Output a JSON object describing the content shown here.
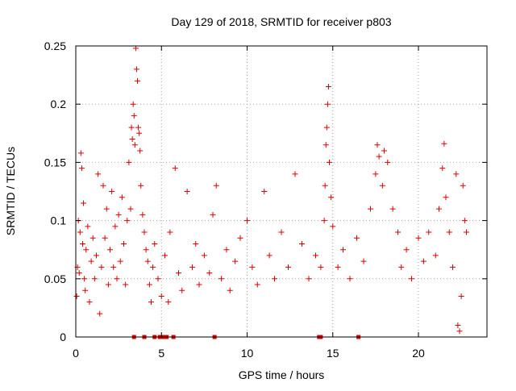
{
  "chart_data": {
    "type": "scatter",
    "title": "Day 129 of 2018, SRMTID for receiver p803",
    "xlabel": "GPS time / hours",
    "ylabel": "SRMTID / TECUs",
    "xlim": [
      0,
      24
    ],
    "ylim": [
      0,
      0.25
    ],
    "grid": true,
    "marker": "plus",
    "marker_color": "#dd0000",
    "x_ticks": [
      0,
      5,
      10,
      15,
      20
    ],
    "x_tick_labels": [
      "0",
      "5",
      "10",
      "15",
      "20"
    ],
    "y_ticks": [
      0,
      0.05,
      0.1,
      0.15,
      0.2,
      0.25
    ],
    "y_tick_labels": [
      "0",
      "0.05",
      "0.1",
      "0.15",
      "0.2",
      "0.25"
    ],
    "zero_markers_x": [
      3.4,
      4.0,
      4.6,
      4.9,
      5.1,
      5.3,
      5.7,
      8.1,
      14.2,
      14.3,
      16.5
    ],
    "points": [
      [
        0.05,
        0.035
      ],
      [
        0.1,
        0.06
      ],
      [
        0.15,
        0.1
      ],
      [
        0.2,
        0.055
      ],
      [
        0.25,
        0.09
      ],
      [
        0.3,
        0.158
      ],
      [
        0.35,
        0.145
      ],
      [
        0.4,
        0.08
      ],
      [
        0.45,
        0.115
      ],
      [
        0.5,
        0.05
      ],
      [
        0.55,
        0.04
      ],
      [
        0.6,
        0.075
      ],
      [
        0.7,
        0.095
      ],
      [
        0.8,
        0.03
      ],
      [
        0.9,
        0.065
      ],
      [
        1.0,
        0.085
      ],
      [
        1.1,
        0.05
      ],
      [
        1.2,
        0.07
      ],
      [
        1.3,
        0.14
      ],
      [
        1.4,
        0.02
      ],
      [
        1.5,
        0.06
      ],
      [
        1.6,
        0.13
      ],
      [
        1.7,
        0.085
      ],
      [
        1.8,
        0.11
      ],
      [
        1.9,
        0.045
      ],
      [
        2.0,
        0.075
      ],
      [
        2.1,
        0.125
      ],
      [
        2.2,
        0.06
      ],
      [
        2.3,
        0.095
      ],
      [
        2.4,
        0.05
      ],
      [
        2.5,
        0.105
      ],
      [
        2.6,
        0.065
      ],
      [
        2.7,
        0.12
      ],
      [
        2.8,
        0.08
      ],
      [
        2.9,
        0.045
      ],
      [
        3.0,
        0.1
      ],
      [
        3.1,
        0.15
      ],
      [
        3.2,
        0.11
      ],
      [
        3.25,
        0.18
      ],
      [
        3.3,
        0.17
      ],
      [
        3.35,
        0.2
      ],
      [
        3.4,
        0.19
      ],
      [
        3.45,
        0.165
      ],
      [
        3.5,
        0.248
      ],
      [
        3.55,
        0.23
      ],
      [
        3.6,
        0.22
      ],
      [
        3.65,
        0.18
      ],
      [
        3.7,
        0.175
      ],
      [
        3.75,
        0.16
      ],
      [
        3.8,
        0.13
      ],
      [
        3.9,
        0.105
      ],
      [
        4.0,
        0.09
      ],
      [
        4.1,
        0.075
      ],
      [
        4.2,
        0.065
      ],
      [
        4.3,
        0.045
      ],
      [
        4.4,
        0.03
      ],
      [
        4.5,
        0.06
      ],
      [
        4.6,
        0.08
      ],
      [
        4.8,
        0.05
      ],
      [
        5.0,
        0.035
      ],
      [
        5.2,
        0.07
      ],
      [
        5.4,
        0.03
      ],
      [
        5.5,
        0.09
      ],
      [
        5.8,
        0.145
      ],
      [
        6.0,
        0.055
      ],
      [
        6.2,
        0.04
      ],
      [
        6.5,
        0.125
      ],
      [
        6.8,
        0.06
      ],
      [
        7.0,
        0.08
      ],
      [
        7.2,
        0.045
      ],
      [
        7.5,
        0.07
      ],
      [
        7.8,
        0.055
      ],
      [
        8.0,
        0.105
      ],
      [
        8.2,
        0.13
      ],
      [
        8.5,
        0.05
      ],
      [
        8.8,
        0.075
      ],
      [
        9.0,
        0.04
      ],
      [
        9.3,
        0.065
      ],
      [
        9.6,
        0.085
      ],
      [
        10.0,
        0.1
      ],
      [
        10.3,
        0.06
      ],
      [
        10.6,
        0.045
      ],
      [
        11.0,
        0.125
      ],
      [
        11.3,
        0.07
      ],
      [
        11.6,
        0.05
      ],
      [
        12.0,
        0.09
      ],
      [
        12.4,
        0.06
      ],
      [
        12.8,
        0.14
      ],
      [
        13.2,
        0.08
      ],
      [
        13.6,
        0.05
      ],
      [
        14.0,
        0.07
      ],
      [
        14.3,
        0.06
      ],
      [
        14.5,
        0.1
      ],
      [
        14.55,
        0.13
      ],
      [
        14.6,
        0.165
      ],
      [
        14.65,
        0.18
      ],
      [
        14.7,
        0.2
      ],
      [
        14.75,
        0.215
      ],
      [
        14.8,
        0.15
      ],
      [
        14.9,
        0.12
      ],
      [
        15.0,
        0.095
      ],
      [
        15.3,
        0.06
      ],
      [
        15.6,
        0.075
      ],
      [
        16.0,
        0.05
      ],
      [
        16.4,
        0.085
      ],
      [
        16.8,
        0.065
      ],
      [
        17.2,
        0.11
      ],
      [
        17.5,
        0.14
      ],
      [
        17.6,
        0.165
      ],
      [
        17.7,
        0.155
      ],
      [
        17.9,
        0.13
      ],
      [
        18.0,
        0.16
      ],
      [
        18.2,
        0.15
      ],
      [
        18.5,
        0.11
      ],
      [
        18.8,
        0.09
      ],
      [
        19.0,
        0.06
      ],
      [
        19.3,
        0.075
      ],
      [
        19.6,
        0.05
      ],
      [
        20.0,
        0.085
      ],
      [
        20.3,
        0.065
      ],
      [
        20.6,
        0.09
      ],
      [
        21.0,
        0.07
      ],
      [
        21.2,
        0.11
      ],
      [
        21.4,
        0.145
      ],
      [
        21.5,
        0.166
      ],
      [
        21.6,
        0.12
      ],
      [
        21.8,
        0.09
      ],
      [
        22.0,
        0.06
      ],
      [
        22.2,
        0.14
      ],
      [
        22.3,
        0.01
      ],
      [
        22.4,
        0.005
      ],
      [
        22.5,
        0.035
      ],
      [
        22.6,
        0.13
      ],
      [
        22.7,
        0.1
      ],
      [
        22.8,
        0.09
      ]
    ]
  }
}
